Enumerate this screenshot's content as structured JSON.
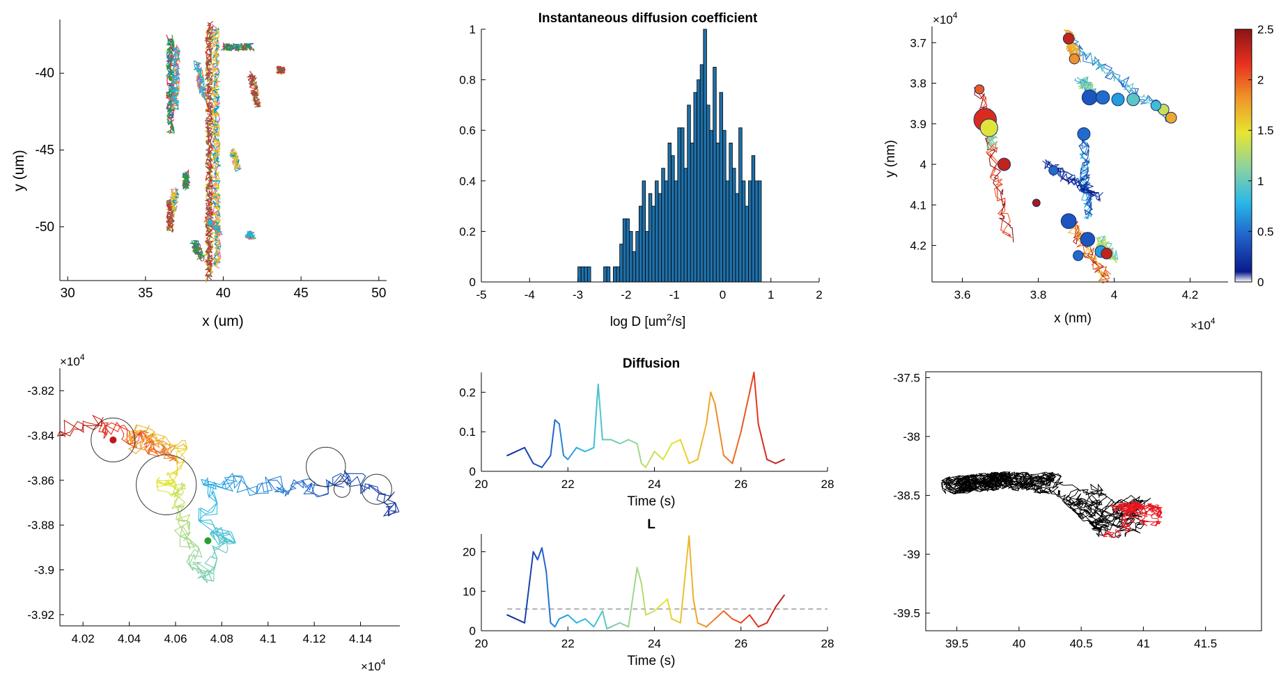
{
  "chart_data": [
    {
      "type": "scatter",
      "panel": "tracks-overview",
      "xlabel": "x (um)",
      "ylabel": "y (um)",
      "xlim": [
        29.5,
        50.5
      ],
      "ylim": [
        -53.5,
        -36.5
      ],
      "y_reversed": true,
      "xticks": [
        30,
        35,
        40,
        45,
        50
      ],
      "yticks": [
        -40,
        -45,
        -50
      ],
      "xtick_labels": [
        "30",
        "35",
        "40",
        "45",
        "50"
      ],
      "ytick_labels": [
        "-40",
        "-45",
        "-50"
      ],
      "box": "axes on left and bottom",
      "note": "many short multi-coloured single-particle trajectories"
    },
    {
      "type": "bar",
      "panel": "histogram",
      "title": "Instantaneous diffusion coefficient",
      "xlabel": "log D [um",
      "xlabel_sup": "2",
      "xlabel_tail": "/s]",
      "xlim": [
        -5,
        2
      ],
      "ylim": [
        0,
        1
      ],
      "xticks": [
        -5,
        -4,
        -3,
        -2,
        -1,
        0,
        1,
        2
      ],
      "yticks": [
        0,
        0.2,
        0.4,
        0.6,
        0.8,
        1
      ],
      "xtick_labels": [
        "-5",
        "-4",
        "-3",
        "-2",
        "-1",
        "0",
        "1",
        "2"
      ],
      "ytick_labels": [
        "0",
        "0.2",
        "0.4",
        "0.6",
        "0.8",
        "1"
      ],
      "bar_color": "#1f6fa8",
      "bin_start": -3.0,
      "bin_width": 0.0667,
      "values": [
        0.06,
        0.06,
        0.06,
        0.06,
        0,
        0,
        0,
        0,
        0.06,
        0.06,
        0,
        0.06,
        0.06,
        0.15,
        0.25,
        0.25,
        0.2,
        0.12,
        0.2,
        0.3,
        0.4,
        0.2,
        0.35,
        0.3,
        0.4,
        0.35,
        0.45,
        0.4,
        0.55,
        0.5,
        0.4,
        0.61,
        0.61,
        0.45,
        0.7,
        0.55,
        0.75,
        0.8,
        0.86,
        1.0,
        0.7,
        0.6,
        0.85,
        0.55,
        0.75,
        0.6,
        0.4,
        0.55,
        0.45,
        0.35,
        0.61,
        0.4,
        0.3,
        0.4,
        0.5,
        0.4,
        0.4
      ]
    },
    {
      "type": "scatter",
      "panel": "tracks-colored",
      "xlabel": "x (nm)",
      "ylabel": "y (nm)",
      "xlim": [
        3.52,
        4.3
      ],
      "ylim": [
        3.66,
        4.29
      ],
      "y_reversed": true,
      "xticks": [
        3.6,
        3.8,
        4,
        4.2
      ],
      "yticks": [
        3.7,
        3.8,
        3.9,
        4,
        4.1,
        4.2
      ],
      "xtick_labels": [
        "3.6",
        "3.8",
        "4",
        "4.2"
      ],
      "ytick_labels": [
        "3.7",
        "3.8",
        "3.9",
        "4",
        "4.1",
        "4.2"
      ],
      "x_exponent": "×10",
      "x_exponent_power": "4",
      "y_exponent": "×10",
      "y_exponent_power": "4",
      "colorbar": {
        "range": [
          0,
          2.5
        ],
        "ticks": [
          0,
          0.5,
          1,
          1.5,
          2,
          2.5
        ],
        "tick_labels": [
          "0",
          "0.5",
          "1",
          "1.5",
          "2",
          "2.5"
        ],
        "colors": [
          "#ffffff",
          "#0a1a8c",
          "#2060c8",
          "#28b8e8",
          "#8cd2a0",
          "#e6e632",
          "#f09628",
          "#e83020",
          "#8c1414"
        ]
      },
      "circles": [
        {
          "x": 3.66,
          "y": 3.89,
          "r": 2.2,
          "c": 2.2
        },
        {
          "x": 3.67,
          "y": 3.91,
          "r": 1.6,
          "c": 1.4
        },
        {
          "x": 3.71,
          "y": 4.0,
          "r": 1.0,
          "c": 2.3
        },
        {
          "x": 3.645,
          "y": 3.815,
          "r": 0.6,
          "c": 2.0
        },
        {
          "x": 3.88,
          "y": 3.69,
          "r": 0.8,
          "c": 2.3
        },
        {
          "x": 3.895,
          "y": 3.74,
          "r": 0.7,
          "c": 1.8
        },
        {
          "x": 3.935,
          "y": 3.835,
          "r": 1.3,
          "c": 0.3
        },
        {
          "x": 3.97,
          "y": 3.835,
          "r": 1.1,
          "c": 0.4
        },
        {
          "x": 4.01,
          "y": 3.84,
          "r": 1.0,
          "c": 0.6
        },
        {
          "x": 4.05,
          "y": 3.84,
          "r": 1.0,
          "c": 0.9
        },
        {
          "x": 4.13,
          "y": 3.865,
          "r": 0.8,
          "c": 1.3
        },
        {
          "x": 4.15,
          "y": 3.885,
          "r": 0.8,
          "c": 1.7
        },
        {
          "x": 4.11,
          "y": 3.855,
          "r": 0.7,
          "c": 0.8
        },
        {
          "x": 3.92,
          "y": 3.925,
          "r": 1.0,
          "c": 0.4
        },
        {
          "x": 3.84,
          "y": 4.015,
          "r": 0.6,
          "c": 0.4
        },
        {
          "x": 3.88,
          "y": 4.14,
          "r": 1.3,
          "c": 0.3
        },
        {
          "x": 3.93,
          "y": 4.185,
          "r": 1.2,
          "c": 0.3
        },
        {
          "x": 3.965,
          "y": 4.215,
          "r": 0.9,
          "c": 0.6
        },
        {
          "x": 3.98,
          "y": 4.22,
          "r": 0.8,
          "c": 2.3
        },
        {
          "x": 3.905,
          "y": 4.225,
          "r": 0.7,
          "c": 0.4
        },
        {
          "x": 3.795,
          "y": 4.095,
          "r": 0.4,
          "c": 2.4
        }
      ]
    },
    {
      "type": "line",
      "panel": "trajectory-detail",
      "xlim": [
        4.01,
        4.157
      ],
      "ylim": [
        -3.925,
        -3.81
      ],
      "xticks": [
        4.02,
        4.04,
        4.06,
        4.08,
        4.1,
        4.12,
        4.14
      ],
      "yticks": [
        -3.82,
        -3.84,
        -3.86,
        -3.88,
        -3.9,
        -3.92
      ],
      "xtick_labels": [
        "4.02",
        "4.04",
        "4.06",
        "4.08",
        "4.1",
        "4.12",
        "4.14"
      ],
      "ytick_labels": [
        "-3.82",
        "-3.84",
        "-3.86",
        "-3.88",
        "-3.9",
        "-3.92"
      ],
      "x_exponent": "×10",
      "x_exponent_power": "4",
      "y_exponent": "×10",
      "y_exponent_power": "4",
      "circles": [
        {
          "x": 4.033,
          "y": -3.842,
          "r": 0.0095
        },
        {
          "x": 4.056,
          "y": -3.862,
          "r": 0.013
        },
        {
          "x": 4.125,
          "y": -3.854,
          "r": 0.0085
        },
        {
          "x": 4.132,
          "y": -3.864,
          "r": 0.0035
        },
        {
          "x": 4.147,
          "y": -3.864,
          "r": 0.0065
        }
      ],
      "dots": [
        {
          "x": 4.033,
          "y": -3.842,
          "color": "#c01818"
        },
        {
          "x": 4.074,
          "y": -3.887,
          "color": "#2ca02c"
        }
      ],
      "path": [
        [
          4.01,
          -3.838
        ],
        [
          4.02,
          -3.835
        ],
        [
          4.028,
          -3.833
        ],
        [
          4.03,
          -3.84
        ],
        [
          4.036,
          -3.836
        ],
        [
          4.04,
          -3.844
        ],
        [
          4.045,
          -3.838
        ],
        [
          4.05,
          -3.842
        ],
        [
          4.048,
          -3.848
        ],
        [
          4.055,
          -3.845
        ],
        [
          4.06,
          -3.85
        ],
        [
          4.052,
          -3.842
        ],
        [
          4.045,
          -3.846
        ],
        [
          4.04,
          -3.841
        ],
        [
          4.042,
          -3.838
        ],
        [
          4.05,
          -3.839
        ],
        [
          4.058,
          -3.844
        ],
        [
          4.065,
          -3.846
        ],
        [
          4.06,
          -3.856
        ],
        [
          4.058,
          -3.862
        ],
        [
          4.052,
          -3.86
        ],
        [
          4.06,
          -3.866
        ],
        [
          4.064,
          -3.862
        ],
        [
          4.06,
          -3.872
        ],
        [
          4.065,
          -3.878
        ],
        [
          4.062,
          -3.885
        ],
        [
          4.07,
          -3.89
        ],
        [
          4.066,
          -3.898
        ],
        [
          4.074,
          -3.9
        ],
        [
          4.072,
          -3.904
        ],
        [
          4.078,
          -3.895
        ],
        [
          4.082,
          -3.886
        ],
        [
          4.075,
          -3.884
        ],
        [
          4.086,
          -3.888
        ],
        [
          4.07,
          -3.878
        ],
        [
          4.078,
          -3.87
        ],
        [
          4.072,
          -3.862
        ],
        [
          4.082,
          -3.864
        ],
        [
          4.085,
          -3.858
        ],
        [
          4.095,
          -3.866
        ],
        [
          4.1,
          -3.86
        ],
        [
          4.108,
          -3.865
        ],
        [
          4.115,
          -3.86
        ],
        [
          4.12,
          -3.866
        ],
        [
          4.128,
          -3.862
        ],
        [
          4.135,
          -3.858
        ],
        [
          4.14,
          -3.862
        ],
        [
          4.148,
          -3.866
        ],
        [
          4.155,
          -3.87
        ],
        [
          4.152,
          -3.876
        ]
      ]
    },
    {
      "type": "line",
      "panel": "diffusion-trace",
      "title": "Diffusion",
      "xlabel": "Time (s)",
      "xlim": [
        20,
        28
      ],
      "ylim": [
        0,
        0.25
      ],
      "xticks": [
        20,
        22,
        24,
        26,
        28
      ],
      "yticks": [
        0,
        0.1,
        0.2
      ],
      "xtick_labels": [
        "20",
        "22",
        "24",
        "26",
        "28"
      ],
      "ytick_labels": [
        "0",
        "0.1",
        "0.2"
      ],
      "x": [
        20.6,
        20.8,
        21.0,
        21.2,
        21.4,
        21.6,
        21.7,
        21.8,
        21.9,
        22.0,
        22.2,
        22.4,
        22.6,
        22.7,
        22.8,
        23.0,
        23.2,
        23.4,
        23.6,
        23.7,
        23.8,
        24.0,
        24.2,
        24.4,
        24.6,
        24.8,
        25.0,
        25.2,
        25.3,
        25.4,
        25.6,
        25.8,
        26.0,
        26.2,
        26.3,
        26.4,
        26.6,
        26.8,
        27.0
      ],
      "values": [
        0.04,
        0.05,
        0.06,
        0.02,
        0.01,
        0.04,
        0.13,
        0.12,
        0.04,
        0.03,
        0.06,
        0.05,
        0.06,
        0.22,
        0.08,
        0.08,
        0.07,
        0.08,
        0.07,
        0.02,
        0.01,
        0.05,
        0.03,
        0.07,
        0.08,
        0.02,
        0.03,
        0.12,
        0.2,
        0.17,
        0.04,
        0.02,
        0.1,
        0.2,
        0.25,
        0.12,
        0.03,
        0.02,
        0.03
      ]
    },
    {
      "type": "line",
      "panel": "L-trace",
      "title": "L",
      "xlabel": "Time (s)",
      "xlim": [
        20,
        28
      ],
      "ylim": [
        0,
        24.5
      ],
      "xticks": [
        20,
        22,
        24,
        26,
        28
      ],
      "yticks": [
        0,
        10,
        20
      ],
      "xtick_labels": [
        "20",
        "22",
        "24",
        "26",
        "28"
      ],
      "ytick_labels": [
        "0",
        "10",
        "20"
      ],
      "threshold": 5.5,
      "x": [
        20.6,
        20.8,
        21.0,
        21.2,
        21.3,
        21.4,
        21.5,
        21.6,
        21.7,
        21.8,
        22.0,
        22.2,
        22.4,
        22.6,
        22.8,
        22.9,
        23.0,
        23.2,
        23.4,
        23.6,
        23.7,
        23.8,
        24.0,
        24.2,
        24.3,
        24.4,
        24.6,
        24.8,
        24.9,
        25.0,
        25.2,
        25.4,
        25.6,
        25.8,
        26.0,
        26.2,
        26.4,
        26.6,
        26.8,
        27.0
      ],
      "values": [
        4,
        3,
        2,
        20,
        18,
        21,
        15,
        2,
        1,
        3,
        4,
        2,
        3,
        1,
        5,
        0.5,
        1,
        2,
        1,
        16,
        12,
        4,
        5,
        7,
        8,
        3,
        2,
        24,
        8,
        2,
        1,
        3,
        5,
        3,
        2,
        4,
        1,
        2,
        6,
        9
      ]
    },
    {
      "type": "line",
      "panel": "trajectory-overlay",
      "xlim": [
        39.25,
        41.95
      ],
      "ylim": [
        -39.65,
        -37.45
      ],
      "xticks": [
        39.5,
        40,
        40.5,
        41,
        41.5
      ],
      "yticks": [
        -37.5,
        -38,
        -38.5,
        -39,
        -39.5
      ],
      "xtick_labels": [
        "39.5",
        "40",
        "40.5",
        "41",
        "41.5"
      ],
      "ytick_labels": [
        "-37.5",
        "-38",
        "-38.5",
        "-39",
        "-39.5"
      ],
      "series_colors": [
        "#000000",
        "#e8141e"
      ],
      "region_black": [
        [
          39.35,
          -38.35
        ],
        [
          39.8,
          -38.3
        ],
        [
          40.25,
          -38.3
        ],
        [
          40.55,
          -38.3
        ],
        [
          40.75,
          -38.5
        ],
        [
          41.2,
          -38.5
        ],
        [
          41.6,
          -38.75
        ],
        [
          41.5,
          -38.9
        ],
        [
          41.1,
          -38.85
        ],
        [
          40.8,
          -39.05
        ],
        [
          40.6,
          -38.8
        ],
        [
          40.3,
          -38.5
        ],
        [
          39.9,
          -38.45
        ],
        [
          39.4,
          -38.5
        ]
      ],
      "region_red": [
        [
          40.6,
          -38.6
        ],
        [
          40.9,
          -38.55
        ],
        [
          41.15,
          -38.58
        ],
        [
          41.15,
          -38.8
        ],
        [
          40.9,
          -38.88
        ],
        [
          40.65,
          -38.85
        ]
      ]
    }
  ]
}
